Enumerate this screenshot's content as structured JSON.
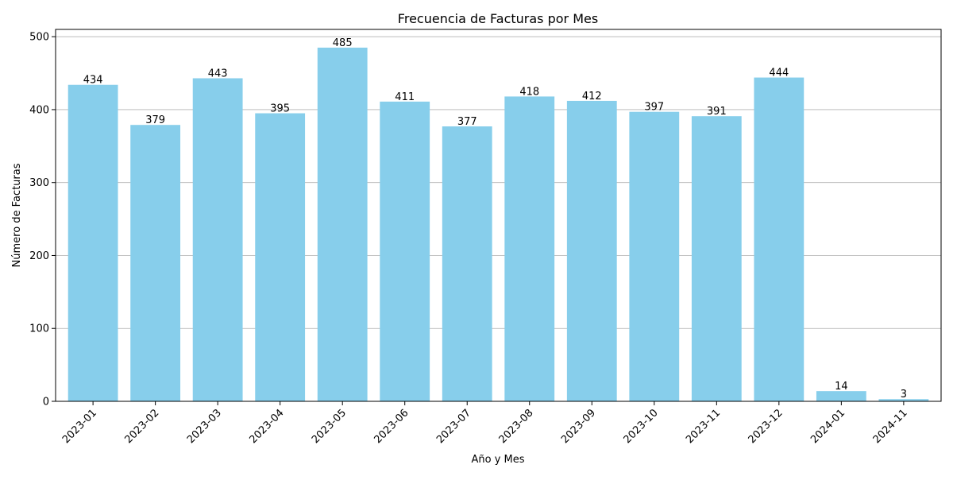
{
  "chart_data": {
    "type": "bar",
    "title": "Frecuencia de Facturas por Mes",
    "xlabel": "Año y Mes",
    "ylabel": "Número de Facturas",
    "categories": [
      "2023-01",
      "2023-02",
      "2023-03",
      "2023-04",
      "2023-05",
      "2023-06",
      "2023-07",
      "2023-08",
      "2023-09",
      "2023-10",
      "2023-11",
      "2023-12",
      "2024-01",
      "2024-11"
    ],
    "values": [
      434,
      379,
      443,
      395,
      485,
      411,
      377,
      418,
      412,
      397,
      391,
      444,
      14,
      3
    ],
    "ylim": [
      0,
      510
    ],
    "yticks": [
      0,
      100,
      200,
      300,
      400,
      500
    ],
    "grid": "horizontal",
    "bar_color": "#87ceeb",
    "grid_color": "#b0b0b0",
    "axis_color": "#000000"
  }
}
